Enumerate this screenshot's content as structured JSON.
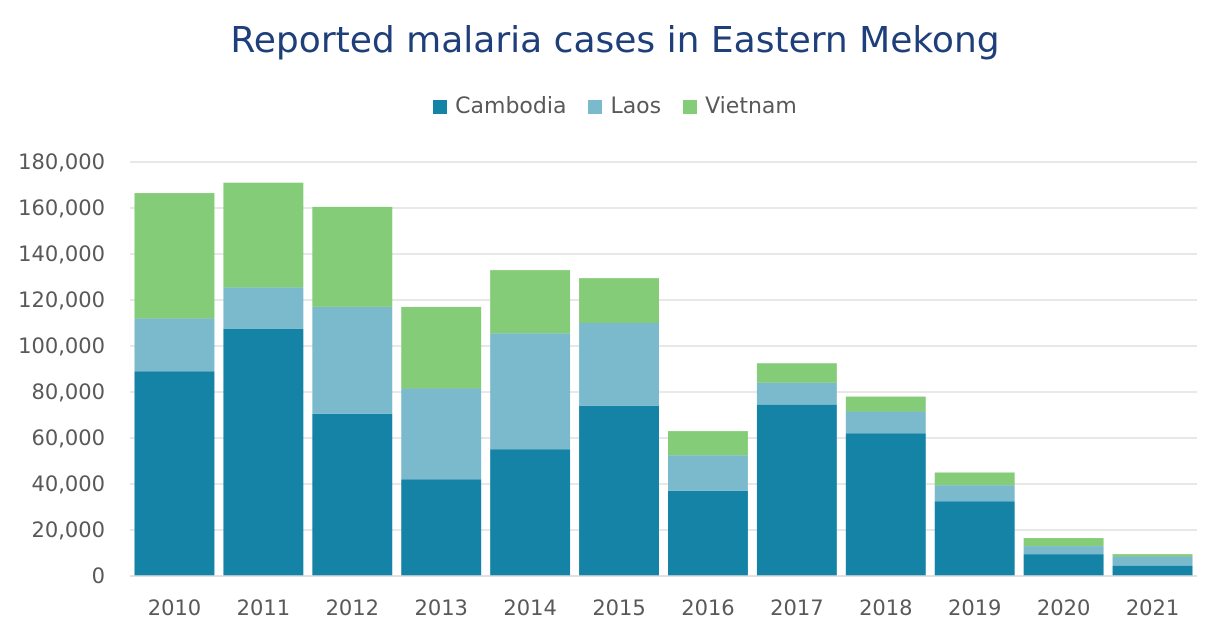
{
  "chart_data": {
    "type": "bar",
    "stacked": true,
    "title": "Reported malaria cases in Eastern Mekong",
    "xlabel": "",
    "ylabel": "",
    "ylim": [
      0,
      180000
    ],
    "yticks": [
      "0",
      "20,000",
      "40,000",
      "60,000",
      "80,000",
      "100,000",
      "120,000",
      "140,000",
      "160,000",
      "180,000"
    ],
    "grid": true,
    "legend_position": "top",
    "categories": [
      "2010",
      "2011",
      "2012",
      "2013",
      "2014",
      "2015",
      "2016",
      "2017",
      "2018",
      "2019",
      "2020",
      "2021"
    ],
    "series": [
      {
        "name": "Cambodia",
        "color": "#1583a6",
        "values": [
          89000,
          107500,
          70500,
          42000,
          55000,
          74000,
          37000,
          74500,
          62000,
          32500,
          9500,
          4500
        ]
      },
      {
        "name": "Laos",
        "color": "#7bbacd",
        "values": [
          23000,
          18000,
          46500,
          39500,
          50500,
          36000,
          15500,
          9500,
          9500,
          7000,
          3500,
          4000
        ]
      },
      {
        "name": "Vietnam",
        "color": "#84cc78",
        "values": [
          54500,
          45500,
          43500,
          35500,
          27500,
          19500,
          10500,
          8500,
          6500,
          5500,
          3500,
          1000
        ]
      }
    ]
  }
}
